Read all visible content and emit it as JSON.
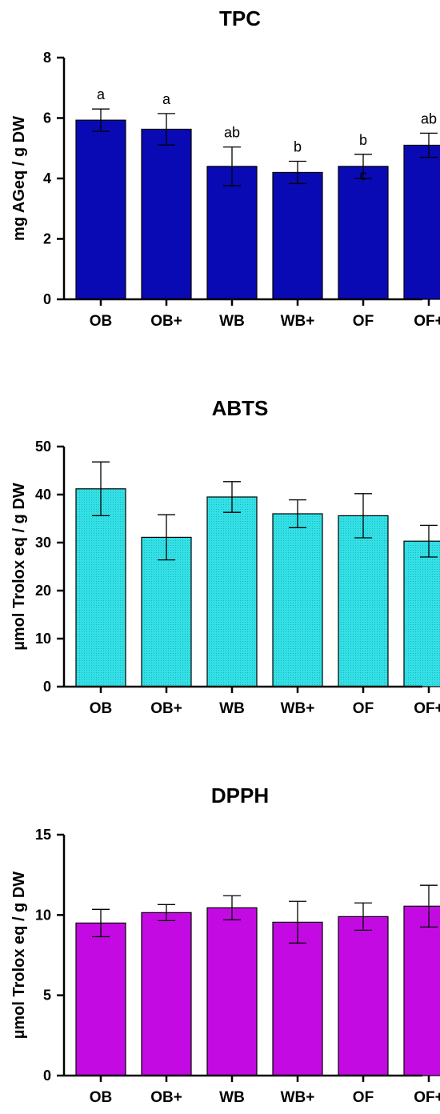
{
  "chart_data": [
    {
      "type": "bar",
      "title": "TPC",
      "ylabel": "mg AGeq / g DW",
      "xlabel": "",
      "categories": [
        "OB",
        "OB+",
        "WB",
        "WB+",
        "OF",
        "OF+"
      ],
      "values": [
        5.93,
        5.63,
        4.4,
        4.2,
        4.4,
        5.1
      ],
      "errors": [
        0.37,
        0.52,
        0.64,
        0.37,
        0.4,
        0.4
      ],
      "annotations": [
        "a",
        "a",
        "ab",
        "b",
        "b",
        "ab"
      ],
      "inner_annotations": [
        "",
        "",
        "",
        "",
        "c",
        ""
      ],
      "ylim": [
        0,
        8
      ],
      "yticks": [
        0,
        2,
        4,
        6,
        8
      ],
      "color": "#0a0ab4",
      "grid": false
    },
    {
      "type": "bar",
      "title": "ABTS",
      "ylabel": "µmol Trolox eq / g DW",
      "xlabel": "",
      "categories": [
        "OB",
        "OB+",
        "WB",
        "WB+",
        "OF",
        "OF+"
      ],
      "values": [
        41.2,
        31.1,
        39.5,
        36.0,
        35.6,
        30.3
      ],
      "errors": [
        5.6,
        4.7,
        3.2,
        2.9,
        4.6,
        3.3
      ],
      "annotations": [
        "",
        "",
        "",
        "",
        "",
        ""
      ],
      "inner_annotations": [
        "",
        "",
        "",
        "",
        "",
        ""
      ],
      "ylim": [
        0,
        50
      ],
      "yticks": [
        0,
        10,
        20,
        30,
        40,
        50
      ],
      "color": "#33e0e6",
      "grid": false
    },
    {
      "type": "bar",
      "title": "DPPH",
      "ylabel": "µmol Trolox eq / g DW",
      "xlabel": "",
      "categories": [
        "OB",
        "OB+",
        "WB",
        "WB+",
        "OF",
        "OF+"
      ],
      "values": [
        9.5,
        10.15,
        10.45,
        9.55,
        9.9,
        10.55
      ],
      "errors": [
        0.85,
        0.5,
        0.75,
        1.3,
        0.85,
        1.3
      ],
      "annotations": [
        "",
        "",
        "",
        "",
        "",
        ""
      ],
      "inner_annotations": [
        "",
        "",
        "",
        "",
        "",
        ""
      ],
      "ylim": [
        0,
        15
      ],
      "yticks": [
        0,
        5,
        10,
        15
      ],
      "color": "#c40ae2",
      "grid": false
    }
  ]
}
